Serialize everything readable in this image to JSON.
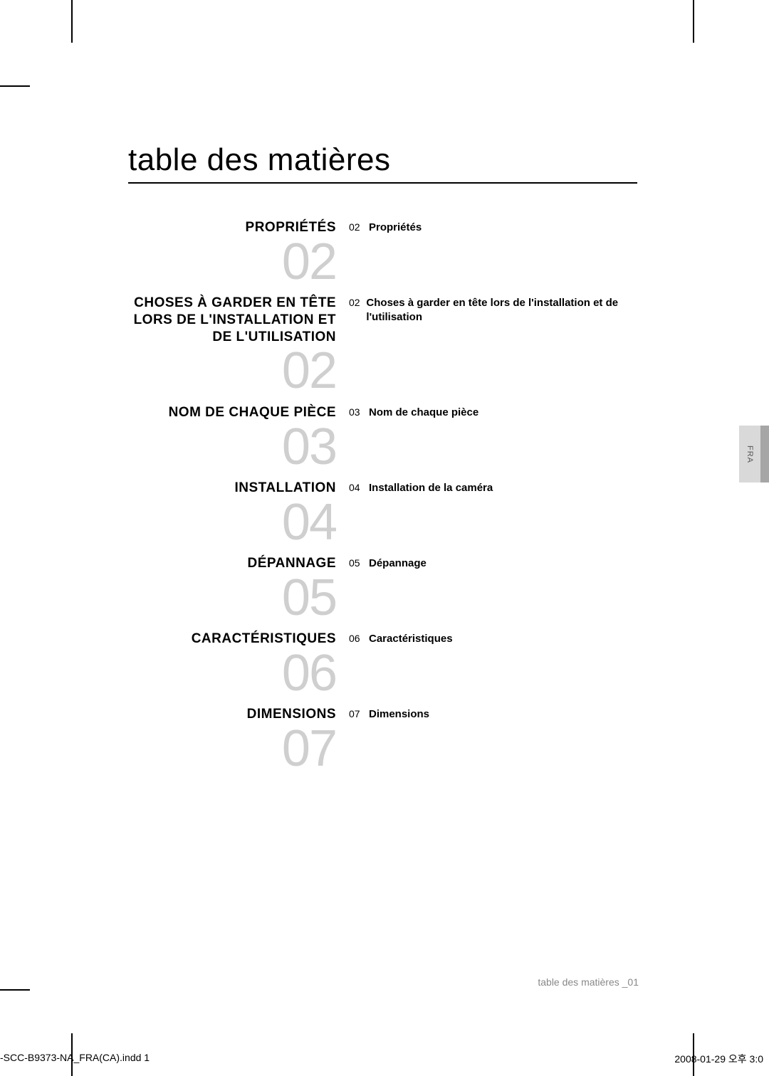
{
  "title": "table des matières",
  "side_tab": "FRA",
  "sections": [
    {
      "heading": "PROPRIÉTÉS",
      "bignum": "02",
      "pagenum": "02",
      "desc": "Propriétés"
    },
    {
      "heading": "CHOSES À GARDER EN TÊTE LORS DE L'INSTALLATION ET DE L'UTILISATION",
      "bignum": "02",
      "pagenum": "02",
      "desc": "Choses à garder en tête lors de l'installation et de l'utilisation"
    },
    {
      "heading": "NOM DE CHAQUE PIÈCE",
      "bignum": "03",
      "pagenum": "03",
      "desc": "Nom de chaque pièce"
    },
    {
      "heading": "INSTALLATION",
      "bignum": "04",
      "pagenum": "04",
      "desc": "Installation de la caméra"
    },
    {
      "heading": "DÉPANNAGE",
      "bignum": "05",
      "pagenum": "05",
      "desc": "Dépannage"
    },
    {
      "heading": "CARACTÉRISTIQUES",
      "bignum": "06",
      "pagenum": "06",
      "desc": "Caractéristiques"
    },
    {
      "heading": "DIMENSIONS",
      "bignum": "07",
      "pagenum": "07",
      "desc": "Dimensions"
    }
  ],
  "footer_right": "table des matières _01",
  "footer_left": "-SCC-B9373-NA_FRA(CA).indd   1",
  "footer_far_right": "2008-01-29   오후 3:0"
}
